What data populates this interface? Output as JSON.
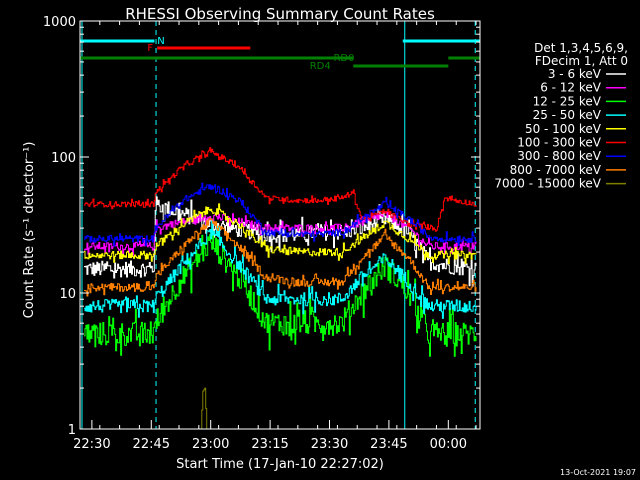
{
  "chart_data": {
    "type": "line",
    "title": "RHESSI Observing Summary Count Rates",
    "xlabel": "Start Time (17-Jan-10 22:27:02)",
    "ylabel": "Count Rate (s⁻¹ detector⁻¹)",
    "yscale": "log",
    "ylim": [
      1,
      1000
    ],
    "xlim_min": [
      0,
      101
    ],
    "x_ticks": [
      {
        "min": 3,
        "label": "22:30"
      },
      {
        "min": 18,
        "label": "22:45"
      },
      {
        "min": 33,
        "label": "23:00"
      },
      {
        "min": 48,
        "label": "23:15"
      },
      {
        "min": 63,
        "label": "23:30"
      },
      {
        "min": 78,
        "label": "23:45"
      },
      {
        "min": 93,
        "label": "00:00"
      }
    ],
    "y_ticks": [
      {
        "value": 1,
        "label": "1"
      },
      {
        "value": 10,
        "label": "10"
      },
      {
        "value": 100,
        "label": "100"
      },
      {
        "value": 1000,
        "label": "1000"
      }
    ],
    "legend_header": [
      "Det 1,3,4,5,6,9,",
      "FDecim 1, Att 0"
    ],
    "legend_placement": "right",
    "timestamp": "13-Oct-2021 19:07",
    "night_lines_min": [
      0.5,
      19.2,
      82.0,
      99.8
    ],
    "flags": [
      {
        "label": "N",
        "color": "#00ffff",
        "segments": [
          [
            0,
            18.8
          ],
          [
            81.5,
            101
          ]
        ]
      },
      {
        "label": "F",
        "color": "#ff0000",
        "segments": [
          [
            19.5,
            43
          ]
        ]
      },
      {
        "label": "RD0",
        "color": "#008000",
        "segments": [
          [
            0,
            69
          ],
          [
            93,
            101
          ]
        ]
      },
      {
        "label": "RD4",
        "color": "#008000",
        "segments": [
          [
            69,
            93
          ]
        ]
      }
    ],
    "series": [
      {
        "name": "3 - 6 keV",
        "color": "#ffffff",
        "base": 15,
        "peak1": 32,
        "peak2": 35,
        "noise": 0.12,
        "x": [
          1,
          18.5,
          19,
          33,
          47,
          55,
          60,
          66,
          71,
          77,
          83,
          88,
          92,
          100
        ],
        "y": [
          15,
          15,
          45,
          32,
          27,
          27,
          28,
          28,
          30,
          35,
          28,
          17,
          16,
          15
        ]
      },
      {
        "name": "6 - 12 keV",
        "color": "#ff00ff",
        "base": 22,
        "peak1": 37,
        "peak2": 38,
        "noise": 0.06,
        "x": [
          1,
          18.5,
          19,
          33,
          47,
          55,
          60,
          66,
          71,
          77,
          83,
          88,
          92,
          100
        ],
        "y": [
          22,
          22,
          30,
          37,
          30,
          30,
          30,
          30,
          33,
          38,
          30,
          22,
          22,
          22
        ]
      },
      {
        "name": "12 - 25 keV",
        "color": "#00ff00",
        "base": 5,
        "peak1": 24,
        "peak2": 16,
        "noise": 0.18,
        "x": [
          1,
          18.5,
          19,
          25,
          33,
          41,
          47,
          55,
          60,
          66,
          71,
          77,
          83,
          88,
          92,
          100
        ],
        "y": [
          5,
          5,
          6,
          12,
          24,
          12,
          6,
          6,
          6,
          6,
          10,
          16,
          10,
          5,
          5,
          5
        ]
      },
      {
        "name": "25 - 50 keV",
        "color": "#00ffff",
        "base": 8,
        "peak1": 28,
        "peak2": 18,
        "noise": 0.1,
        "x": [
          1,
          18.5,
          19,
          25,
          33,
          41,
          47,
          55,
          60,
          66,
          71,
          77,
          83,
          88,
          92,
          100
        ],
        "y": [
          8,
          8,
          9,
          15,
          28,
          15,
          9,
          9,
          9,
          9,
          13,
          18,
          12,
          8,
          8,
          8
        ]
      },
      {
        "name": "50 - 100 keV",
        "color": "#ffff00",
        "base": 19,
        "peak1": 42,
        "peak2": 33,
        "noise": 0.06,
        "x": [
          1,
          18.5,
          19,
          26,
          33,
          40,
          47,
          55,
          60,
          66,
          71,
          77,
          83,
          88,
          92,
          100
        ],
        "y": [
          19,
          19,
          22,
          32,
          42,
          32,
          21,
          20,
          20,
          20,
          25,
          33,
          25,
          19,
          19,
          19
        ]
      },
      {
        "name": "100 - 300 keV",
        "color": "#ff0000",
        "base": 45,
        "peak1": 110,
        "peak2": 40,
        "noise": 0.04,
        "x": [
          1,
          18.5,
          19,
          26,
          33,
          40,
          47,
          55,
          60,
          66,
          69,
          71,
          77,
          83,
          90,
          92,
          100
        ],
        "y": [
          45,
          45,
          55,
          85,
          110,
          85,
          50,
          48,
          48,
          50,
          55,
          35,
          40,
          32,
          30,
          50,
          45
        ]
      },
      {
        "name": "300 - 800 keV",
        "color": "#0000ff",
        "base": 25,
        "peak1": 62,
        "peak2": 45,
        "noise": 0.05,
        "x": [
          1,
          18.5,
          19,
          26,
          33,
          40,
          47,
          55,
          60,
          66,
          71,
          77,
          83,
          88,
          92,
          100
        ],
        "y": [
          25,
          25,
          30,
          48,
          62,
          48,
          28,
          27,
          27,
          28,
          35,
          45,
          35,
          26,
          25,
          25
        ]
      },
      {
        "name": "800 - 7000 keV",
        "color": "#ff8000",
        "base": 11,
        "peak1": 34,
        "peak2": 26,
        "noise": 0.06,
        "x": [
          1,
          18.5,
          19,
          26,
          33,
          40,
          47,
          55,
          60,
          66,
          71,
          77,
          83,
          88,
          92,
          100
        ],
        "y": [
          11,
          11,
          13,
          22,
          34,
          22,
          13,
          12,
          12,
          12,
          18,
          26,
          18,
          11,
          11,
          11
        ]
      },
      {
        "name": "7000 - 15000 keV",
        "color": "#808000",
        "base": 1,
        "peak1": 2,
        "peak2": 1,
        "noise": 0,
        "x": [
          1,
          30.5,
          31,
          31.5,
          32,
          100
        ],
        "y": [
          1,
          1,
          1.9,
          2.0,
          1,
          1
        ]
      }
    ]
  }
}
